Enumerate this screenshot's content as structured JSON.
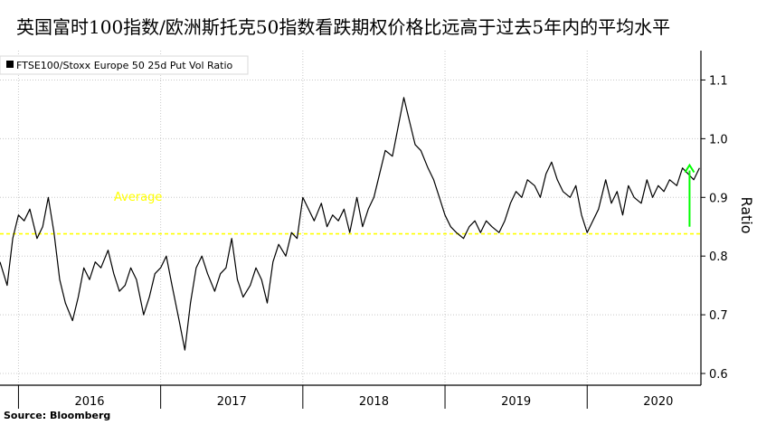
{
  "headline": "英国富时100指数/欧洲斯托克50指数看跌期权价格比远高于过去5年内的平均水平",
  "source": "Source: Bloomberg",
  "chart_data": {
    "type": "line",
    "title": "英国富时100指数/欧洲斯托克50指数看跌期权价格比远高于过去5年内的平均水平",
    "legend": [
      "FTSE100/Stoxx Europe 50 25d Put Vol Ratio"
    ],
    "legend_position": "top-left",
    "ylabel": "Ratio",
    "y_axis_side": "right",
    "ylim": [
      0.58,
      1.15
    ],
    "yticks": [
      0.6,
      0.7,
      0.8,
      0.9,
      1.0,
      1.1
    ],
    "ytick_labels": [
      "0.6",
      "0.7",
      "0.8",
      "0.9",
      "1.0",
      "1.1"
    ],
    "xlim": [
      2015.87,
      2020.8
    ],
    "x_year_labels": [
      "2016",
      "2017",
      "2018",
      "2019",
      "2020"
    ],
    "x_year_centers": [
      2016.5,
      2017.5,
      2018.5,
      2019.5,
      2020.5
    ],
    "x_year_boundaries": [
      2016.0,
      2017.0,
      2018.0,
      2019.0,
      2020.0
    ],
    "grid": true,
    "series": [
      {
        "name": "FTSE100/Stoxx Europe 50 25d Put Vol Ratio",
        "color": "#000000",
        "x": [
          2015.87,
          2015.92,
          2015.96,
          2016.0,
          2016.04,
          2016.08,
          2016.13,
          2016.17,
          2016.21,
          2016.25,
          2016.29,
          2016.33,
          2016.38,
          2016.42,
          2016.46,
          2016.5,
          2016.54,
          2016.58,
          2016.63,
          2016.67,
          2016.71,
          2016.75,
          2016.79,
          2016.83,
          2016.88,
          2016.92,
          2016.96,
          2017.0,
          2017.04,
          2017.08,
          2017.13,
          2017.17,
          2017.21,
          2017.25,
          2017.29,
          2017.33,
          2017.38,
          2017.42,
          2017.46,
          2017.5,
          2017.54,
          2017.58,
          2017.63,
          2017.67,
          2017.71,
          2017.75,
          2017.79,
          2017.83,
          2017.88,
          2017.92,
          2017.96,
          2018.0,
          2018.04,
          2018.08,
          2018.13,
          2018.17,
          2018.21,
          2018.25,
          2018.29,
          2018.33,
          2018.38,
          2018.42,
          2018.46,
          2018.5,
          2018.54,
          2018.58,
          2018.63,
          2018.67,
          2018.71,
          2018.75,
          2018.79,
          2018.83,
          2018.88,
          2018.92,
          2018.96,
          2019.0,
          2019.04,
          2019.08,
          2019.13,
          2019.17,
          2019.21,
          2019.25,
          2019.29,
          2019.33,
          2019.38,
          2019.42,
          2019.46,
          2019.5,
          2019.54,
          2019.58,
          2019.63,
          2019.67,
          2019.71,
          2019.75,
          2019.79,
          2019.83,
          2019.88,
          2019.92,
          2019.96,
          2020.0,
          2020.04,
          2020.08,
          2020.13,
          2020.17,
          2020.21,
          2020.25,
          2020.29,
          2020.33,
          2020.38,
          2020.42,
          2020.46,
          2020.5,
          2020.54,
          2020.58,
          2020.63,
          2020.67,
          2020.71,
          2020.75,
          2020.79
        ],
        "values": [
          0.79,
          0.75,
          0.83,
          0.87,
          0.86,
          0.88,
          0.83,
          0.85,
          0.9,
          0.84,
          0.76,
          0.72,
          0.69,
          0.73,
          0.78,
          0.76,
          0.79,
          0.78,
          0.81,
          0.77,
          0.74,
          0.75,
          0.78,
          0.76,
          0.7,
          0.73,
          0.77,
          0.78,
          0.8,
          0.75,
          0.69,
          0.64,
          0.72,
          0.78,
          0.8,
          0.77,
          0.74,
          0.77,
          0.78,
          0.83,
          0.76,
          0.73,
          0.75,
          0.78,
          0.76,
          0.72,
          0.79,
          0.82,
          0.8,
          0.84,
          0.83,
          0.9,
          0.88,
          0.86,
          0.89,
          0.85,
          0.87,
          0.86,
          0.88,
          0.84,
          0.9,
          0.85,
          0.88,
          0.9,
          0.94,
          0.98,
          0.97,
          1.02,
          1.07,
          1.03,
          0.99,
          0.98,
          0.95,
          0.93,
          0.9,
          0.87,
          0.85,
          0.84,
          0.83,
          0.85,
          0.86,
          0.84,
          0.86,
          0.85,
          0.84,
          0.86,
          0.89,
          0.91,
          0.9,
          0.93,
          0.92,
          0.9,
          0.94,
          0.96,
          0.93,
          0.91,
          0.9,
          0.92,
          0.87,
          0.84,
          0.86,
          0.88,
          0.93,
          0.89,
          0.91,
          0.87,
          0.92,
          0.9,
          0.89,
          0.93,
          0.9,
          0.92,
          0.91,
          0.93,
          0.92,
          0.95,
          0.94,
          0.93,
          0.95
        ]
      }
    ],
    "annotations": [
      {
        "text": "Average",
        "value": 0.838,
        "style": "dashed horizontal line",
        "color": "#ffff00"
      },
      {
        "text": "",
        "style": "upward arrow",
        "color": "#00ff00",
        "from": 0.85,
        "to": 0.955,
        "at_x": 2020.72
      }
    ]
  }
}
